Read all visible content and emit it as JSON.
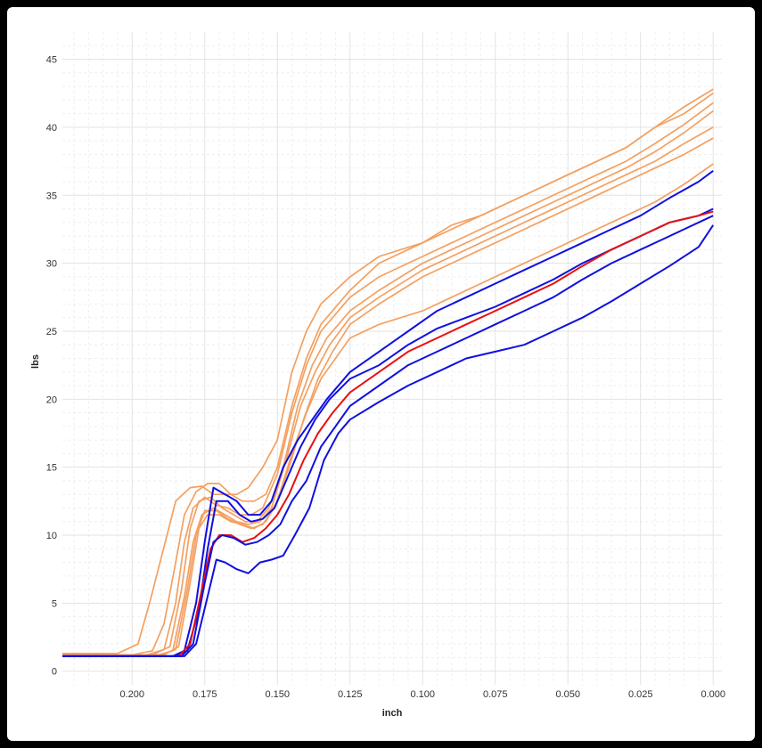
{
  "chart_data": {
    "type": "line",
    "title": "",
    "xlabel": "inch",
    "ylabel": "lbs",
    "xlim": [
      0.224,
      -0.003
    ],
    "ylim": [
      -1,
      47
    ],
    "x_reversed": true,
    "grid": true,
    "legend": "none",
    "x_ticks": [
      0.2,
      0.175,
      0.15,
      0.125,
      0.1,
      0.075,
      0.05,
      0.025,
      0.0
    ],
    "x_tick_labels": [
      "0.200",
      "0.175",
      "0.150",
      "0.125",
      "0.100",
      "0.075",
      "0.050",
      "0.025",
      "0.000"
    ],
    "y_ticks": [
      0,
      5,
      10,
      15,
      20,
      25,
      30,
      35,
      40,
      45
    ],
    "y_tick_labels": [
      "0",
      "5",
      "10",
      "15",
      "20",
      "25",
      "30",
      "35",
      "40",
      "45"
    ],
    "colors": {
      "orange": "#f4a060",
      "blue": "#1010e0",
      "red": "#e81010",
      "grid": "#e3e3e3",
      "grid_minor": "#efefef"
    },
    "series": [
      {
        "color": "orange",
        "x": [
          0.224,
          0.205,
          0.198,
          0.194,
          0.188,
          0.185,
          0.18,
          0.176,
          0.172,
          0.168,
          0.164,
          0.16,
          0.155,
          0.15,
          0.145,
          0.14,
          0.135,
          0.125,
          0.115,
          0.1,
          0.09,
          0.08,
          0.07,
          0.06,
          0.05,
          0.04,
          0.03,
          0.02,
          0.01,
          0.0
        ],
        "values": [
          1.3,
          1.3,
          2.0,
          5.0,
          10.0,
          12.5,
          13.5,
          13.6,
          13.0,
          13.0,
          13.0,
          13.5,
          15.0,
          17.0,
          22.0,
          25.0,
          27.0,
          29.0,
          30.5,
          31.5,
          32.8,
          33.5,
          34.5,
          35.5,
          36.5,
          37.5,
          38.5,
          40.0,
          41.5,
          42.8
        ]
      },
      {
        "color": "orange",
        "x": [
          0.224,
          0.2,
          0.193,
          0.189,
          0.185,
          0.182,
          0.178,
          0.174,
          0.17,
          0.166,
          0.162,
          0.158,
          0.154,
          0.15,
          0.145,
          0.14,
          0.135,
          0.125,
          0.115,
          0.1,
          0.09,
          0.08,
          0.07,
          0.06,
          0.05,
          0.04,
          0.03,
          0.02,
          0.01,
          0.0
        ],
        "values": [
          1.2,
          1.2,
          1.5,
          3.5,
          8.0,
          11.5,
          13.2,
          13.8,
          13.8,
          13.0,
          12.5,
          12.5,
          13.0,
          15.0,
          19.5,
          23.0,
          25.5,
          28.0,
          30.0,
          31.5,
          32.5,
          33.5,
          34.5,
          35.5,
          36.5,
          37.5,
          38.5,
          40.0,
          41.0,
          42.5
        ]
      },
      {
        "color": "orange",
        "x": [
          0.224,
          0.195,
          0.189,
          0.185,
          0.182,
          0.179,
          0.175,
          0.171,
          0.167,
          0.163,
          0.159,
          0.155,
          0.15,
          0.145,
          0.14,
          0.135,
          0.125,
          0.115,
          0.1,
          0.09,
          0.08,
          0.07,
          0.06,
          0.05,
          0.04,
          0.03,
          0.02,
          0.01,
          0.0
        ],
        "values": [
          1.2,
          1.2,
          1.6,
          5.0,
          9.5,
          12.0,
          12.8,
          12.2,
          12.0,
          11.5,
          11.5,
          12.0,
          14.5,
          19.0,
          22.5,
          25.0,
          27.5,
          29.0,
          30.5,
          31.5,
          32.5,
          33.5,
          34.5,
          35.5,
          36.5,
          37.5,
          38.8,
          40.2,
          41.8
        ]
      },
      {
        "color": "orange",
        "x": [
          0.224,
          0.193,
          0.187,
          0.183,
          0.18,
          0.177,
          0.173,
          0.169,
          0.165,
          0.161,
          0.157,
          0.153,
          0.148,
          0.143,
          0.138,
          0.133,
          0.125,
          0.115,
          0.1,
          0.09,
          0.08,
          0.07,
          0.06,
          0.05,
          0.04,
          0.03,
          0.02,
          0.01,
          0.0
        ],
        "values": [
          1.2,
          1.2,
          1.8,
          6.0,
          10.5,
          12.5,
          12.8,
          12.0,
          11.5,
          11.0,
          11.0,
          12.0,
          15.0,
          19.5,
          22.5,
          24.5,
          26.5,
          28.0,
          30.0,
          31.0,
          32.0,
          33.0,
          34.0,
          35.0,
          36.0,
          37.0,
          38.2,
          39.6,
          41.2
        ]
      },
      {
        "color": "orange",
        "x": [
          0.224,
          0.191,
          0.186,
          0.182,
          0.179,
          0.176,
          0.172,
          0.168,
          0.164,
          0.16,
          0.156,
          0.152,
          0.147,
          0.142,
          0.137,
          0.132,
          0.125,
          0.115,
          0.1,
          0.09,
          0.08,
          0.07,
          0.06,
          0.05,
          0.04,
          0.03,
          0.02,
          0.01,
          0.0
        ],
        "values": [
          1.2,
          1.2,
          1.5,
          5.5,
          9.5,
          11.5,
          12.0,
          11.5,
          11.0,
          10.8,
          11.0,
          12.0,
          15.5,
          19.5,
          22.0,
          24.0,
          26.0,
          27.5,
          29.5,
          30.5,
          31.5,
          32.5,
          33.5,
          34.5,
          35.5,
          36.5,
          37.5,
          38.8,
          40.0
        ]
      },
      {
        "color": "orange",
        "x": [
          0.224,
          0.19,
          0.185,
          0.181,
          0.178,
          0.175,
          0.171,
          0.167,
          0.163,
          0.159,
          0.155,
          0.151,
          0.146,
          0.141,
          0.136,
          0.131,
          0.125,
          0.115,
          0.1,
          0.09,
          0.08,
          0.07,
          0.06,
          0.05,
          0.04,
          0.03,
          0.02,
          0.01,
          0.0
        ],
        "values": [
          1.2,
          1.2,
          1.6,
          6.0,
          10.0,
          11.8,
          11.8,
          11.2,
          10.8,
          10.5,
          10.8,
          12.0,
          15.0,
          18.5,
          21.5,
          23.5,
          25.5,
          27.0,
          29.0,
          30.0,
          31.0,
          32.0,
          33.0,
          34.0,
          35.0,
          36.0,
          37.0,
          38.0,
          39.2
        ]
      },
      {
        "color": "orange",
        "x": [
          0.224,
          0.189,
          0.184,
          0.18,
          0.177,
          0.174,
          0.17,
          0.166,
          0.162,
          0.158,
          0.154,
          0.15,
          0.145,
          0.14,
          0.135,
          0.13,
          0.125,
          0.115,
          0.1,
          0.09,
          0.08,
          0.07,
          0.06,
          0.05,
          0.04,
          0.03,
          0.02,
          0.01,
          0.0
        ],
        "values": [
          1.2,
          1.2,
          1.8,
          6.5,
          10.5,
          11.5,
          11.5,
          11.0,
          10.8,
          10.5,
          11.0,
          12.5,
          16.0,
          19.0,
          21.5,
          23.0,
          24.5,
          25.5,
          26.5,
          27.5,
          28.5,
          29.5,
          30.5,
          31.5,
          32.5,
          33.5,
          34.5,
          35.8,
          37.3
        ]
      },
      {
        "color": "blue",
        "x": [
          0.224,
          0.186,
          0.182,
          0.178,
          0.175,
          0.172,
          0.168,
          0.164,
          0.16,
          0.156,
          0.152,
          0.148,
          0.143,
          0.138,
          0.133,
          0.125,
          0.115,
          0.105,
          0.095,
          0.085,
          0.075,
          0.065,
          0.055,
          0.045,
          0.035,
          0.025,
          0.015,
          0.005,
          0.0
        ],
        "values": [
          1.1,
          1.1,
          1.5,
          5.0,
          9.5,
          13.5,
          13.0,
          12.5,
          11.5,
          11.5,
          12.5,
          15.0,
          17.0,
          18.5,
          20.0,
          22.0,
          23.5,
          25.0,
          26.5,
          27.5,
          28.5,
          29.5,
          30.5,
          31.5,
          32.5,
          33.5,
          34.8,
          36.0,
          36.8
        ]
      },
      {
        "color": "blue",
        "x": [
          0.224,
          0.185,
          0.181,
          0.177,
          0.174,
          0.171,
          0.167,
          0.163,
          0.159,
          0.155,
          0.151,
          0.147,
          0.142,
          0.137,
          0.132,
          0.125,
          0.115,
          0.105,
          0.095,
          0.085,
          0.075,
          0.065,
          0.055,
          0.045,
          0.035,
          0.025,
          0.015,
          0.005,
          0.0
        ],
        "values": [
          1.1,
          1.1,
          1.5,
          4.5,
          9.0,
          12.5,
          12.5,
          11.5,
          11.0,
          11.2,
          12.0,
          14.0,
          16.5,
          18.5,
          20.0,
          21.5,
          22.5,
          24.0,
          25.2,
          26.0,
          26.8,
          27.8,
          28.8,
          30.0,
          31.0,
          32.0,
          33.0,
          33.5,
          34.0
        ]
      },
      {
        "color": "red",
        "x": [
          0.224,
          0.184,
          0.18,
          0.176,
          0.173,
          0.17,
          0.166,
          0.162,
          0.158,
          0.154,
          0.15,
          0.146,
          0.141,
          0.136,
          0.131,
          0.125,
          0.115,
          0.105,
          0.095,
          0.085,
          0.075,
          0.065,
          0.055,
          0.045,
          0.035,
          0.025,
          0.015,
          0.005,
          0.0
        ],
        "values": [
          1.1,
          1.1,
          2.0,
          6.0,
          9.0,
          10.0,
          10.0,
          9.5,
          9.8,
          10.5,
          11.5,
          13.0,
          15.5,
          17.5,
          19.0,
          20.5,
          22.0,
          23.5,
          24.5,
          25.5,
          26.5,
          27.5,
          28.5,
          29.8,
          31.0,
          32.0,
          33.0,
          33.5,
          33.8
        ]
      },
      {
        "color": "blue",
        "x": [
          0.224,
          0.183,
          0.179,
          0.175,
          0.172,
          0.169,
          0.165,
          0.161,
          0.157,
          0.153,
          0.149,
          0.145,
          0.14,
          0.135,
          0.13,
          0.125,
          0.115,
          0.105,
          0.095,
          0.085,
          0.075,
          0.065,
          0.055,
          0.045,
          0.035,
          0.025,
          0.015,
          0.005,
          0.0
        ],
        "values": [
          1.1,
          1.1,
          2.0,
          6.5,
          9.5,
          10.0,
          9.8,
          9.3,
          9.5,
          10.0,
          10.8,
          12.5,
          14.0,
          16.5,
          18.0,
          19.5,
          21.0,
          22.5,
          23.5,
          24.5,
          25.5,
          26.5,
          27.5,
          28.8,
          30.0,
          31.0,
          32.0,
          33.0,
          33.5
        ]
      },
      {
        "color": "blue",
        "x": [
          0.224,
          0.182,
          0.178,
          0.174,
          0.171,
          0.168,
          0.164,
          0.16,
          0.156,
          0.152,
          0.148,
          0.144,
          0.139,
          0.134,
          0.129,
          0.125,
          0.115,
          0.105,
          0.095,
          0.085,
          0.075,
          0.065,
          0.055,
          0.045,
          0.035,
          0.025,
          0.015,
          0.005,
          0.0
        ],
        "values": [
          1.1,
          1.1,
          2.0,
          5.5,
          8.2,
          8.0,
          7.5,
          7.2,
          8.0,
          8.2,
          8.5,
          10.0,
          12.0,
          15.5,
          17.5,
          18.5,
          19.8,
          21.0,
          22.0,
          23.0,
          23.5,
          24.0,
          25.0,
          26.0,
          27.2,
          28.5,
          29.8,
          31.2,
          32.8
        ]
      }
    ]
  }
}
